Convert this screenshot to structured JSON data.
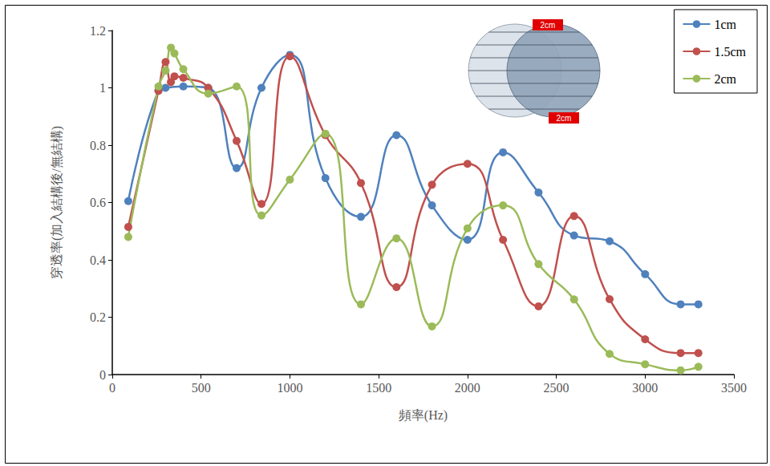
{
  "chart_data": {
    "type": "line",
    "x_label": "頻率(Hz)",
    "y_label": "穿透率(加入結構後/無結構)",
    "annotations": [
      "2cm",
      "2cm"
    ],
    "xlim": [
      0,
      3500
    ],
    "xticks": [
      0,
      500,
      1000,
      1500,
      2000,
      2500,
      3000,
      3500
    ],
    "ylim": [
      0,
      1.2
    ],
    "yticks": [
      0,
      0.2,
      0.4,
      0.6,
      0.8,
      1,
      1.2
    ],
    "grid": false,
    "legend": "upper right",
    "marker": "circle",
    "line_style": "solid",
    "series": [
      {
        "name": "1cm",
        "color": "#4f81bd",
        "x": [
          90,
          260,
          300,
          400,
          540,
          700,
          840,
          1000,
          1200,
          1400,
          1600,
          1800,
          2000,
          2200,
          2400,
          2600,
          2800,
          3000,
          3200,
          3300
        ],
        "values": [
          0.605,
          0.99,
          1.0,
          1.005,
          1.0,
          0.72,
          1.0,
          1.115,
          0.685,
          0.55,
          0.835,
          0.59,
          0.47,
          0.775,
          0.635,
          0.485,
          0.465,
          0.35,
          0.245,
          0.245
        ]
      },
      {
        "name": "1.5cm",
        "color": "#c0504d",
        "x": [
          90,
          260,
          300,
          330,
          350,
          400,
          540,
          700,
          840,
          1000,
          1200,
          1400,
          1600,
          1800,
          2000,
          2200,
          2400,
          2600,
          2800,
          3000,
          3200,
          3300
        ],
        "values": [
          0.515,
          0.99,
          1.09,
          1.02,
          1.04,
          1.035,
          1.0,
          0.815,
          0.595,
          1.11,
          0.835,
          0.668,
          0.305,
          0.662,
          0.735,
          0.47,
          0.238,
          0.553,
          0.263,
          0.123,
          0.075,
          0.075
        ]
      },
      {
        "name": "2cm",
        "color": "#9bbb59",
        "x": [
          90,
          260,
          300,
          330,
          350,
          400,
          540,
          700,
          840,
          1000,
          1200,
          1400,
          1600,
          1800,
          2000,
          2200,
          2400,
          2600,
          2800,
          3000,
          3200,
          3300
        ],
        "values": [
          0.48,
          1.005,
          1.06,
          1.14,
          1.12,
          1.065,
          0.98,
          1.005,
          0.555,
          0.68,
          0.84,
          0.245,
          0.475,
          0.168,
          0.51,
          0.59,
          0.385,
          0.262,
          0.072,
          0.036,
          0.015,
          0.027
        ]
      }
    ]
  }
}
